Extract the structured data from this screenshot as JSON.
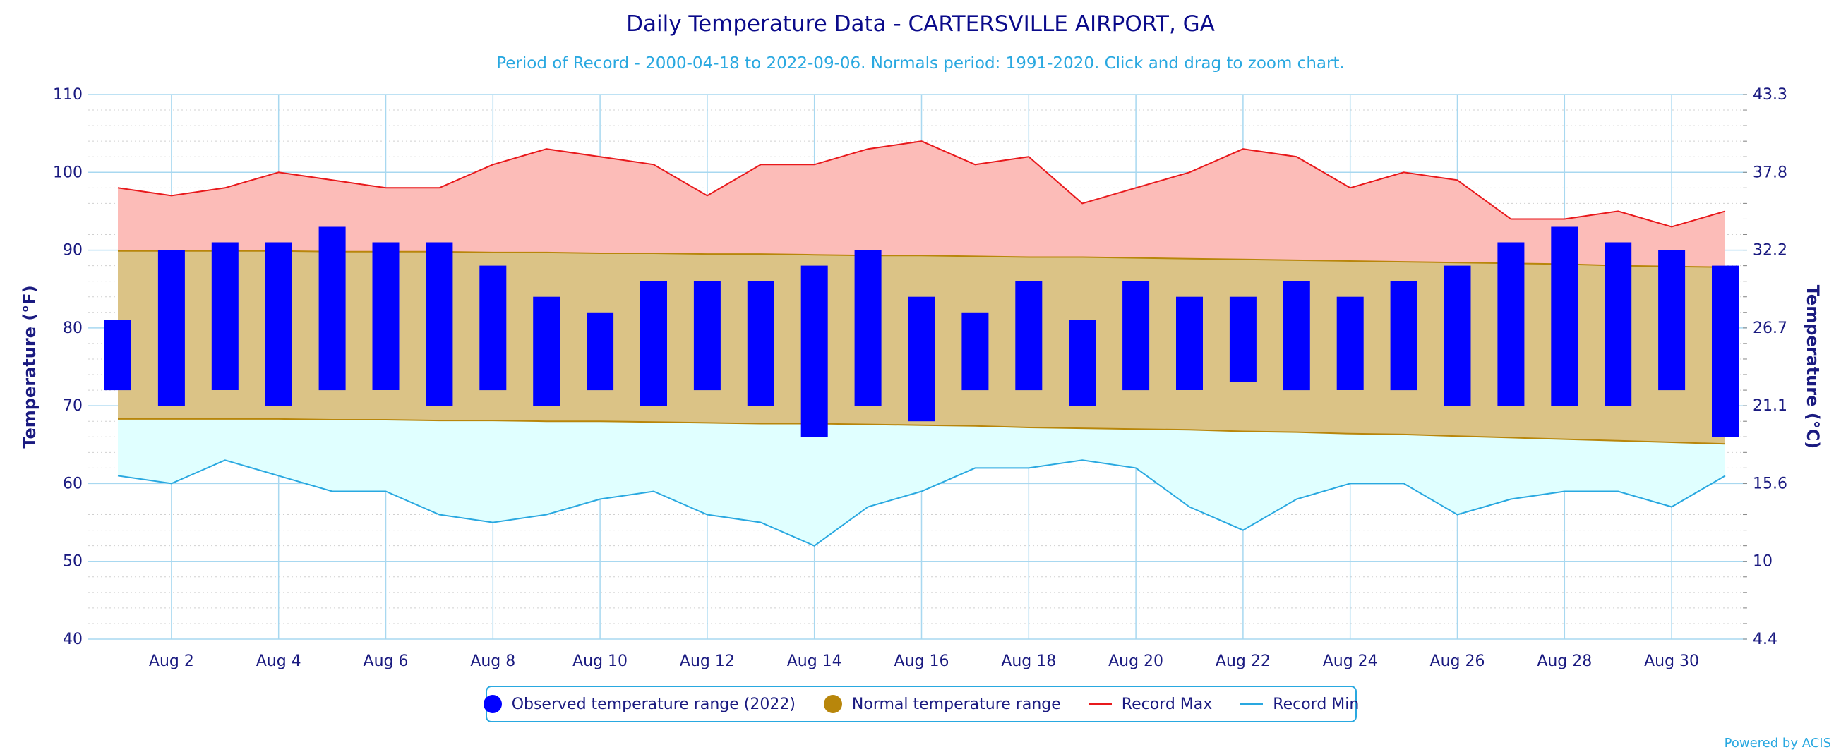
{
  "chart_data": {
    "type": "bar",
    "title": "Daily Temperature Data - CARTERSVILLE AIRPORT, GA",
    "subtitle": "Period of Record - 2000-04-18 to 2022-09-06. Normals period: 1991-2020. Click and drag to zoom chart.",
    "ylabel_left": "Temperature (°F)",
    "ylabel_right": "Temperature (°C)",
    "ylim": [
      40,
      110
    ],
    "yticks_left": [
      40,
      50,
      60,
      70,
      80,
      90,
      100,
      110
    ],
    "yticks_right": [
      "4.4",
      "10",
      "15.6",
      "21.1",
      "26.7",
      "32.2",
      "37.8",
      "43.3"
    ],
    "x_days": [
      1,
      2,
      3,
      4,
      5,
      6,
      7,
      8,
      9,
      10,
      11,
      12,
      13,
      14,
      15,
      16,
      17,
      18,
      19,
      20,
      21,
      22,
      23,
      24,
      25,
      26,
      27,
      28,
      29,
      30,
      31
    ],
    "xtick_labels": [
      "Aug 2",
      "Aug 4",
      "Aug 6",
      "Aug 8",
      "Aug 10",
      "Aug 12",
      "Aug 14",
      "Aug 16",
      "Aug 18",
      "Aug 20",
      "Aug 22",
      "Aug 24",
      "Aug 26",
      "Aug 28",
      "Aug 30"
    ],
    "xtick_days": [
      2,
      4,
      6,
      8,
      10,
      12,
      14,
      16,
      18,
      20,
      22,
      24,
      26,
      28,
      30
    ],
    "grid": true,
    "legend_placement": "bottom-center",
    "series": [
      {
        "name": "Observed temperature range (2022)",
        "color": "#0000ff",
        "low": [
          72,
          70,
          72,
          70,
          72,
          72,
          70,
          72,
          70,
          72,
          70,
          72,
          70,
          66,
          70,
          68,
          72,
          72,
          70,
          72,
          72,
          73,
          72,
          72,
          72,
          70,
          70,
          70,
          70,
          72,
          66
        ],
        "high": [
          81,
          90,
          91,
          91,
          93,
          91,
          91,
          88,
          84,
          82,
          86,
          86,
          86,
          88,
          90,
          84,
          82,
          86,
          81,
          86,
          84,
          84,
          86,
          84,
          86,
          88,
          91,
          93,
          91,
          90,
          88
        ]
      },
      {
        "name": "Normal temperature range",
        "color": "#b8860b",
        "fill": "#dbc386",
        "low": [
          68.3,
          68.3,
          68.3,
          68.3,
          68.2,
          68.2,
          68.1,
          68.1,
          68.0,
          68.0,
          67.9,
          67.8,
          67.7,
          67.7,
          67.6,
          67.5,
          67.4,
          67.2,
          67.1,
          67.0,
          66.9,
          66.7,
          66.6,
          66.4,
          66.3,
          66.1,
          65.9,
          65.7,
          65.5,
          65.3,
          65.1
        ],
        "high": [
          89.9,
          89.9,
          89.9,
          89.9,
          89.8,
          89.8,
          89.8,
          89.7,
          89.7,
          89.6,
          89.6,
          89.5,
          89.5,
          89.4,
          89.3,
          89.3,
          89.2,
          89.1,
          89.1,
          89.0,
          88.9,
          88.8,
          88.7,
          88.6,
          88.5,
          88.4,
          88.3,
          88.2,
          88.0,
          87.9,
          87.8
        ]
      },
      {
        "name": "Record Max",
        "color": "#e8191c",
        "fill": "#fcbcb8",
        "values": [
          98,
          97,
          98,
          100,
          99,
          98,
          98,
          101,
          103,
          102,
          101,
          97,
          101,
          101,
          103,
          104,
          101,
          102,
          96,
          98,
          100,
          103,
          102,
          98,
          100,
          99,
          94,
          94,
          95,
          93,
          95
        ]
      },
      {
        "name": "Record Min",
        "color": "#29a8e0",
        "fill": "#e0ffff",
        "values": [
          61,
          60,
          63,
          61,
          59,
          59,
          56,
          55,
          56,
          58,
          59,
          56,
          55,
          52,
          57,
          59,
          62,
          62,
          63,
          62,
          57,
          54,
          58,
          60,
          60,
          56,
          58,
          59,
          59,
          57,
          61
        ]
      }
    ]
  },
  "credit": "Powered by ACIS"
}
